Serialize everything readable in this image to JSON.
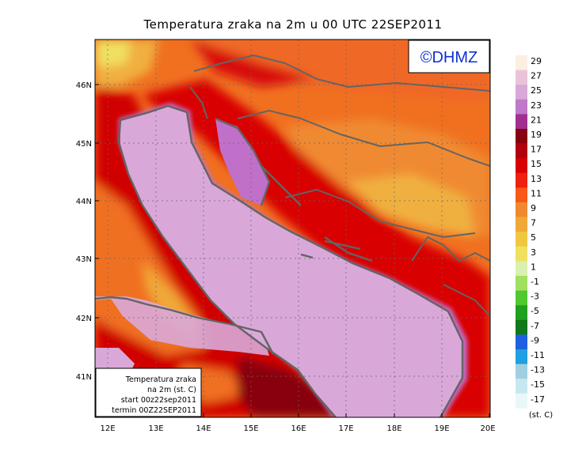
{
  "title": "Temperatura zraka na 2m u 00 UTC 22SEP2011",
  "logo_text": "©DHMZ",
  "info_box": {
    "line1": "Temperatura zraka",
    "line2": "na 2m (st. C)",
    "line3": "start 00z22sep2011",
    "line4": "termin 00Z22SEP2011"
  },
  "lat_labels": [
    "46N",
    "45N",
    "44N",
    "43N",
    "42N",
    "41N"
  ],
  "lon_labels": [
    "12E",
    "13E",
    "14E",
    "15E",
    "16E",
    "17E",
    "18E",
    "19E",
    "20E"
  ],
  "colorbar": {
    "unit": "(st. C)",
    "levels": [
      "29",
      "27",
      "25",
      "23",
      "21",
      "19",
      "17",
      "15",
      "13",
      "11",
      "9",
      "7",
      "5",
      "3",
      "1",
      "-1",
      "-3",
      "-5",
      "-7",
      "-9",
      "-11",
      "-13",
      "-15",
      "-17"
    ],
    "colors": [
      "#fbefe0",
      "#e8c4d8",
      "#d8a8d8",
      "#c078c8",
      "#a03090",
      "#880010",
      "#b00010",
      "#d80000",
      "#f02010",
      "#f85818",
      "#f08830",
      "#f0a838",
      "#f0c840",
      "#f0e060",
      "#d8f0b0",
      "#a0e060",
      "#50c830",
      "#20a020",
      "#107818",
      "#2060e0",
      "#20a0e0",
      "#a0d0e0",
      "#c8e8f0",
      "#e8f8f8"
    ]
  },
  "colors": {
    "sea": "#d9a8d9",
    "coast": "#646464",
    "frame": "#000000"
  }
}
